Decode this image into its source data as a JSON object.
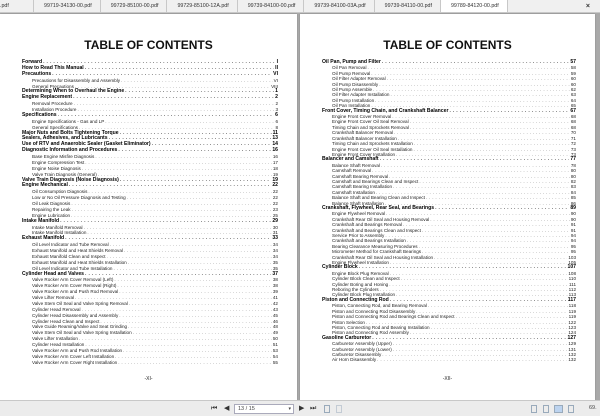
{
  "tabs": [
    ".pdf",
    "99719-34130-00.pdf",
    "99729-85100-00.pdf",
    "99729-85100-12A.pdf",
    "99739-84100-00.pdf",
    "99739-84100-03A.pdf",
    "99739-84110-00.pdf",
    "99789-84120-00.pdf"
  ],
  "active_tab": 7,
  "close_icon": "×",
  "pages": [
    {
      "title": "TABLE OF CONTENTS",
      "footer": "-XI-",
      "entries": [
        {
          "t": "Forward",
          "p": "I",
          "l": 1
        },
        {
          "t": "How to Read This Manual",
          "p": "II",
          "l": 1
        },
        {
          "t": "Precautions",
          "p": "VI",
          "l": 1
        },
        {
          "t": "Precautions for Disassembly and Assembly",
          "p": "VI",
          "l": 2
        },
        {
          "t": "General Precautions",
          "p": "VIII",
          "l": 2
        },
        {
          "t": "Determining When to Overhaul the Engine",
          "p": "1",
          "l": 1
        },
        {
          "t": "Engine Replacement",
          "p": "2",
          "l": 1
        },
        {
          "t": "Removal Procedure",
          "p": "2",
          "l": 2
        },
        {
          "t": "Installation Procedure",
          "p": "3",
          "l": 2
        },
        {
          "t": "Specifications",
          "p": "6",
          "l": 1
        },
        {
          "t": "Engine Specifications - Gas and LP",
          "p": "6",
          "l": 2
        },
        {
          "t": "General Specifications",
          "p": "8",
          "l": 2
        },
        {
          "t": "Major Nuts and Bolts Tightening Torque",
          "p": "11",
          "l": 1
        },
        {
          "t": "Sealers, Adhesives, and Lubricants",
          "p": "13",
          "l": 1
        },
        {
          "t": "Use of RTV and Anaerobic Sealer (Gasket Eliminator)",
          "p": "14",
          "l": 1
        },
        {
          "t": "Diagnostic Information and Procedures",
          "p": "16",
          "l": 1
        },
        {
          "t": "Base Engine Misfire Diagnosis",
          "p": "16",
          "l": 2
        },
        {
          "t": "Engine Compression Test",
          "p": "17",
          "l": 2
        },
        {
          "t": "Engine Noise Diagnosis",
          "p": "18",
          "l": 2
        },
        {
          "t": "Valve Train Diagnosis (General)",
          "p": "19",
          "l": 2
        },
        {
          "t": "Valve Train Diagnosis (Noise Diagnosis)",
          "p": "19",
          "l": 1
        },
        {
          "t": "Engine Mechanical",
          "p": "22",
          "l": 1
        },
        {
          "t": "Oil Consumption Diagnosis",
          "p": "22",
          "l": 2
        },
        {
          "t": "Low or No Oil Pressure Diagnosis and Testing",
          "p": "22",
          "l": 2
        },
        {
          "t": "Oil Leak Diagnosis",
          "p": "22",
          "l": 2
        },
        {
          "t": "Repairing the Leak",
          "p": "23",
          "l": 2
        },
        {
          "t": "Engine Lubrication",
          "p": "25",
          "l": 2
        },
        {
          "t": "Intake Manifold",
          "p": "29",
          "l": 1
        },
        {
          "t": "Intake Manifold Removal",
          "p": "30",
          "l": 2
        },
        {
          "t": "Intake Manifold Installation",
          "p": "31",
          "l": 2
        },
        {
          "t": "Exhaust Manifold",
          "p": "33",
          "l": 1
        },
        {
          "t": "Oil Level Indicator and Tube Removal",
          "p": "34",
          "l": 2
        },
        {
          "t": "Exhaust Manifold and Heat Shields Removal",
          "p": "34",
          "l": 2
        },
        {
          "t": "Exhaust Manifold Clean and Inspect",
          "p": "34",
          "l": 2
        },
        {
          "t": "Exhaust Manifold and Heat Shields Installation",
          "p": "35",
          "l": 2
        },
        {
          "t": "Oil Level Indicator and Tube Installation",
          "p": "35",
          "l": 2
        },
        {
          "t": "Cylinder Head and Valves",
          "p": "37",
          "l": 1
        },
        {
          "t": "Valve Rocker Arm Cover Removal (Left)",
          "p": "38",
          "l": 2
        },
        {
          "t": "Valve Rocker Arm Cover Removal (Right)",
          "p": "38",
          "l": 2
        },
        {
          "t": "Valve Rocker Arm and Push Rod Removal",
          "p": "39",
          "l": 2
        },
        {
          "t": "Valve Lifter Removal",
          "p": "41",
          "l": 2
        },
        {
          "t": "Valve Stem Oil Seal and Valve Spring Removal",
          "p": "42",
          "l": 2
        },
        {
          "t": "Cylinder Head Removal",
          "p": "43",
          "l": 2
        },
        {
          "t": "Cylinder Head Disassembly and Assembly",
          "p": "45",
          "l": 2
        },
        {
          "t": "Cylinder Head Clean and Inspect",
          "p": "46",
          "l": 2
        },
        {
          "t": "Valve Guide Reaming/Valve and Seat Grinding",
          "p": "48",
          "l": 2
        },
        {
          "t": "Valve Stem Oil Seal and Valve Spring Installation",
          "p": "49",
          "l": 2
        },
        {
          "t": "Valve Lifter Installation",
          "p": "50",
          "l": 2
        },
        {
          "t": "Cylinder Head Installation",
          "p": "51",
          "l": 2
        },
        {
          "t": "Valve Rocker Arm and Push Rod Installation",
          "p": "53",
          "l": 2
        },
        {
          "t": "Valve Rocker Arm Cover Left Installation",
          "p": "54",
          "l": 2
        },
        {
          "t": "Valve Rocker Arm Cover Right Installation",
          "p": "55",
          "l": 2
        }
      ]
    },
    {
      "title": "TABLE OF CONTENTS",
      "footer": "-XII-",
      "entries": [
        {
          "t": "Oil Pan, Pump and Filter",
          "p": "57",
          "l": 1
        },
        {
          "t": "Oil Pan Removal",
          "p": "58",
          "l": 2
        },
        {
          "t": "Oil Pump Removal",
          "p": "59",
          "l": 2
        },
        {
          "t": "Oil Filter Adapter Removal",
          "p": "60",
          "l": 2
        },
        {
          "t": "Oil Pump Disassembly",
          "p": "60",
          "l": 2
        },
        {
          "t": "Oil Pump Assemble",
          "p": "62",
          "l": 2
        },
        {
          "t": "Oil Filter Adapter Installation",
          "p": "63",
          "l": 2
        },
        {
          "t": "Oil Pump Installation",
          "p": "64",
          "l": 2
        },
        {
          "t": "Oil Pan Installation",
          "p": "65",
          "l": 2
        },
        {
          "t": "Front Cover, Timing Chain, and Crankshaft Balancer",
          "p": "67",
          "l": 1
        },
        {
          "t": "Engine Front Cover Removal",
          "p": "68",
          "l": 2
        },
        {
          "t": "Engine Front Cover Oil Seal Removal",
          "p": "68",
          "l": 2
        },
        {
          "t": "Timing Chain and Sprockets Removal",
          "p": "68",
          "l": 2
        },
        {
          "t": "Crankshaft Balancer Removal",
          "p": "70",
          "l": 2
        },
        {
          "t": "Crankshaft Balancer Installation",
          "p": "71",
          "l": 2
        },
        {
          "t": "Timing Chain and Sprockets Installation",
          "p": "72",
          "l": 2
        },
        {
          "t": "Engine Front Cover Oil Seal Installation",
          "p": "73",
          "l": 2
        },
        {
          "t": "Engine Front Cover Installation",
          "p": "73",
          "l": 2
        },
        {
          "t": "Balancer and Camshaft",
          "p": "77",
          "l": 1
        },
        {
          "t": "Balance Shaft Removal",
          "p": "78",
          "l": 2
        },
        {
          "t": "Camshaft Removal",
          "p": "80",
          "l": 2
        },
        {
          "t": "Camshaft Bearing Removal",
          "p": "80",
          "l": 2
        },
        {
          "t": "Camshaft and Bearings Clean and Inspect",
          "p": "82",
          "l": 2
        },
        {
          "t": "Camshaft Bearing Installation",
          "p": "83",
          "l": 2
        },
        {
          "t": "Camshaft Installation",
          "p": "84",
          "l": 2
        },
        {
          "t": "Balance Shaft and Bearing Clean and Inspect",
          "p": "85",
          "l": 2
        },
        {
          "t": "Balance Shaft Installation",
          "p": "86",
          "l": 2
        },
        {
          "t": "Crankshaft, Flywheel, Rear Seal, and Bearings",
          "p": "89",
          "l": 1
        },
        {
          "t": "Engine Flywheel Removal",
          "p": "90",
          "l": 2
        },
        {
          "t": "Crankshaft Rear Oil Seal and Housing Removal",
          "p": "90",
          "l": 2
        },
        {
          "t": "Crankshaft and Bearings Removal",
          "p": "91",
          "l": 2
        },
        {
          "t": "Crankshaft and Bearings Clean and Inspect",
          "p": "91",
          "l": 2
        },
        {
          "t": "Service Prior to Assembly",
          "p": "94",
          "l": 2
        },
        {
          "t": "Crankshaft and Bearings Installation",
          "p": "94",
          "l": 2
        },
        {
          "t": "Bearing Clearance Measuring Procedures",
          "p": "95",
          "l": 2
        },
        {
          "t": "Micrometer Method for Crankshaft Bearings",
          "p": "95",
          "l": 2
        },
        {
          "t": "Crankshaft Rear Oil Seal and Housing Installation",
          "p": "103",
          "l": 2
        },
        {
          "t": "Engine Flywheel Installation",
          "p": "105",
          "l": 2
        },
        {
          "t": "Cylinder Block",
          "p": "107",
          "l": 1
        },
        {
          "t": "Engine Block Plug Removal",
          "p": "108",
          "l": 2
        },
        {
          "t": "Cylinder Block Clean and Inspect",
          "p": "110",
          "l": 2
        },
        {
          "t": "Cylinder Boring and Honing",
          "p": "111",
          "l": 2
        },
        {
          "t": "Reboring the Cylinders",
          "p": "112",
          "l": 2
        },
        {
          "t": "Cylinder Block Plug Installation",
          "p": "113",
          "l": 2
        },
        {
          "t": "Piston and Connecting Rod",
          "p": "117",
          "l": 1
        },
        {
          "t": "Piston, Connecting Rod, and Bearing Removal",
          "p": "118",
          "l": 2
        },
        {
          "t": "Piston and Connecting Rod Disassembly",
          "p": "119",
          "l": 2
        },
        {
          "t": "Piston and Connecting Rod and Bearings Clean and Inspect",
          "p": "119",
          "l": 2
        },
        {
          "t": "Piston Selection",
          "p": "122",
          "l": 2
        },
        {
          "t": "Piston, Connecting Rod and Bearing Installation",
          "p": "123",
          "l": 2
        },
        {
          "t": "Piston and Connecting Rod Assembly",
          "p": "124",
          "l": 2
        },
        {
          "t": "Gasoline Carburetor",
          "p": "127",
          "l": 1
        },
        {
          "t": "Carburetor Assembly (Upper)",
          "p": "129",
          "l": 2
        },
        {
          "t": "Carburetor Assembly (Lower)",
          "p": "131",
          "l": 2
        },
        {
          "t": "Carburetor Disassembly",
          "p": "132",
          "l": 2
        },
        {
          "t": "Air Horn Disassembly",
          "p": "132",
          "l": 2
        }
      ]
    }
  ],
  "toolbar": {
    "first": "⏮",
    "prev": "◀",
    "page_value": "13 / 15",
    "dropdown": "▾",
    "next": "▶",
    "last": "⏭",
    "zoom_value": "69."
  }
}
